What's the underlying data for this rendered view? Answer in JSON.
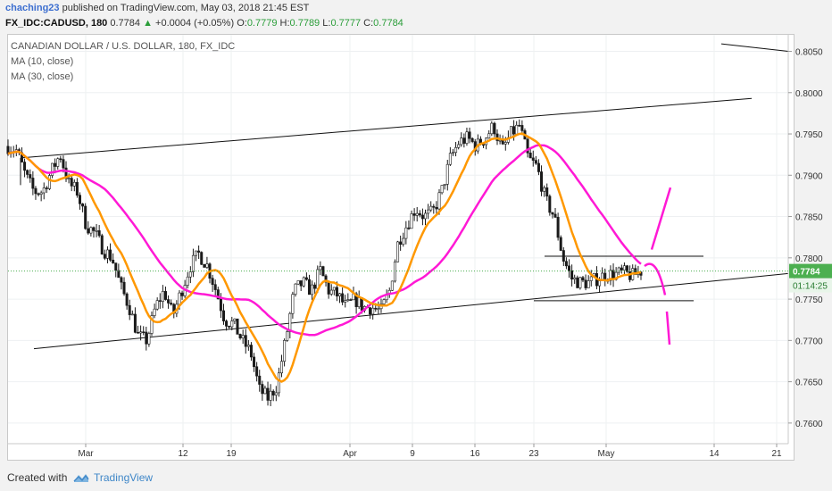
{
  "header": {
    "user": "chaching23",
    "published": "published on TradingView.com, May 03, 2018 21:45 EST",
    "symbol": "FX_IDC:CADUSD, 180",
    "last": "0.7784",
    "change": "+0.0004 (+0.05%)",
    "o_label": "O:",
    "o": "0.7779",
    "h_label": "H:",
    "h": "0.7789",
    "l_label": "L:",
    "l": "0.7777",
    "c_label": "C:",
    "c": "0.7784"
  },
  "legend": {
    "title": "CANADIAN DOLLAR / U.S. DOLLAR, 180, FX_IDC",
    "ma10": "MA (10, close)",
    "ma30": "MA (30, close)"
  },
  "footer": {
    "created": "Created with",
    "brand": "TradingView"
  },
  "colors": {
    "price_label": "#4caf50",
    "ma10": "#ff9800",
    "ma30": "#ff19d5",
    "candles": "#1a1a1a"
  },
  "chart_data": {
    "type": "candlestick",
    "title": "CANADIAN DOLLAR / U.S. DOLLAR, 180, FX_IDC",
    "ylim": [
      0.7575,
      0.807
    ],
    "y_ticks": [
      "0.8050",
      "0.8000",
      "0.7950",
      "0.7900",
      "0.7850",
      "0.7800",
      "0.7750",
      "0.7700",
      "0.7650",
      "0.7600"
    ],
    "x_ticks": [
      "Mar",
      "12",
      "19",
      "Apr",
      "9",
      "16",
      "23",
      "May",
      "14",
      "21"
    ],
    "last_price": "0.7784",
    "countdown": "01:14:25",
    "grid": true,
    "close_path": [
      [
        0.7935,
        0.793
      ],
      [
        0.79,
        0.788
      ],
      [
        0.788,
        0.7905
      ],
      [
        0.7925,
        0.789
      ],
      [
        0.788,
        0.784
      ],
      [
        0.783,
        0.781
      ],
      [
        0.78,
        0.7765
      ],
      [
        0.774,
        0.7705
      ],
      [
        0.77,
        0.774
      ],
      [
        0.776,
        0.773
      ],
      [
        0.776,
        0.779
      ],
      [
        0.7805,
        0.779
      ],
      [
        0.776,
        0.7725
      ],
      [
        0.772,
        0.77
      ],
      [
        0.7685,
        0.764
      ],
      [
        0.763,
        0.7645
      ],
      [
        0.77,
        0.776
      ],
      [
        0.777,
        0.776
      ],
      [
        0.7785,
        0.776
      ],
      [
        0.7755,
        0.774
      ],
      [
        0.775,
        0.774
      ],
      [
        0.774,
        0.7735
      ],
      [
        0.776,
        0.782
      ],
      [
        0.784,
        0.786
      ],
      [
        0.785,
        0.7855
      ],
      [
        0.788,
        0.792
      ],
      [
        0.794,
        0.7945
      ],
      [
        0.7935,
        0.7945
      ],
      [
        0.796,
        0.793
      ],
      [
        0.795,
        0.796
      ],
      [
        0.792,
        0.791
      ],
      [
        0.787,
        0.785
      ],
      [
        0.78,
        0.7775
      ],
      [
        0.777,
        0.777
      ],
      [
        0.7775,
        0.778
      ],
      [
        0.778,
        0.7782
      ],
      [
        0.7778,
        0.7784
      ]
    ],
    "series": [
      {
        "name": "MA (10, close)",
        "color": "#ff9800"
      },
      {
        "name": "MA (30, close)",
        "color": "#ff19d5"
      }
    ]
  }
}
